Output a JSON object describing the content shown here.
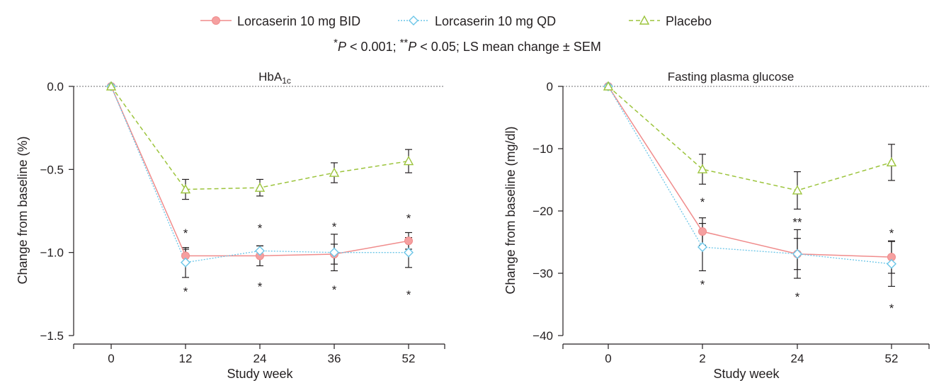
{
  "legend": {
    "items": [
      {
        "label": "Lorcaserin 10 mg BID",
        "color": "#f08c8c",
        "marker": "circle",
        "dash": "solid"
      },
      {
        "label": "Lorcaserin 10 mg QD",
        "color": "#6cc6e8",
        "marker": "diamond",
        "dash": "dotted"
      },
      {
        "label": "Placebo",
        "color": "#9cc43c",
        "marker": "triangle",
        "dash": "dashed"
      }
    ],
    "note": {
      "star1": "*",
      "p1": "P",
      "t1": " < 0.001;  ",
      "star2": "**",
      "p2": "P",
      "t2": " < 0.05; LS mean change ± SEM"
    }
  },
  "chart_data": [
    {
      "type": "line",
      "title": "HbA",
      "title_subscript": "1c",
      "xlabel": "Study week",
      "ylabel": "Change from baseline (%)",
      "categories": [
        "0",
        "12",
        "24",
        "36",
        "52"
      ],
      "ylim": [
        -1.5,
        0.0
      ],
      "yticks": [
        "0.0",
        "-0.5",
        "-1.0",
        "-1.5"
      ],
      "ytick_values": [
        0.0,
        -0.5,
        -1.0,
        -1.5
      ],
      "reference_line": 0.0,
      "series": [
        {
          "name": "Lorcaserin 10 mg BID",
          "values": [
            0.0,
            -1.02,
            -1.02,
            -1.01,
            -0.93
          ],
          "sem": [
            0,
            0.04,
            0.06,
            0.06,
            0.05
          ]
        },
        {
          "name": "Lorcaserin 10 mg QD",
          "values": [
            0.0,
            -1.06,
            -0.99,
            -1.0,
            -1.0
          ],
          "sem": [
            0,
            0.09,
            0.03,
            0.11,
            0.09
          ]
        },
        {
          "name": "Placebo",
          "values": [
            0.0,
            -0.62,
            -0.61,
            -0.52,
            -0.45
          ],
          "sem": [
            0,
            0.06,
            0.05,
            0.06,
            0.07
          ]
        }
      ],
      "annotations": [
        {
          "x": "12",
          "y": -0.87,
          "text": "*"
        },
        {
          "x": "12",
          "y": -1.22,
          "text": "*"
        },
        {
          "x": "24",
          "y": -0.84,
          "text": "*"
        },
        {
          "x": "24",
          "y": -1.19,
          "text": "*"
        },
        {
          "x": "36",
          "y": -0.83,
          "text": "*"
        },
        {
          "x": "36",
          "y": -1.21,
          "text": "*"
        },
        {
          "x": "52",
          "y": -0.78,
          "text": "*"
        },
        {
          "x": "52",
          "y": -1.24,
          "text": "*"
        }
      ]
    },
    {
      "type": "line",
      "title": "Fasting plasma glucose",
      "title_subscript": "",
      "xlabel": "Study week",
      "ylabel": "Change from baseline (mg/dl)",
      "categories": [
        "0",
        "2",
        "24",
        "52"
      ],
      "ylim": [
        -40,
        0
      ],
      "yticks": [
        "0",
        "-10",
        "-20",
        "-30",
        "-40"
      ],
      "ytick_values": [
        0,
        -10,
        -20,
        -30,
        -40
      ],
      "reference_line": 0,
      "series": [
        {
          "name": "Lorcaserin 10 mg BID",
          "values": [
            0,
            -23.3,
            -26.9,
            -27.4
          ],
          "sem": [
            0,
            2.2,
            2.5,
            2.6
          ]
        },
        {
          "name": "Lorcaserin 10 mg QD",
          "values": [
            0,
            -25.8,
            -26.9,
            -28.5
          ],
          "sem": [
            0,
            3.8,
            3.9,
            3.6
          ]
        },
        {
          "name": "Placebo",
          "values": [
            0,
            -13.3,
            -16.7,
            -12.2
          ],
          "sem": [
            0,
            2.4,
            3.0,
            2.9
          ]
        }
      ],
      "annotations": [
        {
          "x": "2",
          "y": -18.2,
          "text": "*"
        },
        {
          "x": "2",
          "y": -31.4,
          "text": "*"
        },
        {
          "x": "24",
          "y": -21.4,
          "text": "**"
        },
        {
          "x": "24",
          "y": -33.4,
          "text": "*"
        },
        {
          "x": "52",
          "y": -23.2,
          "text": "*"
        },
        {
          "x": "52",
          "y": -35.2,
          "text": "*"
        }
      ]
    }
  ]
}
